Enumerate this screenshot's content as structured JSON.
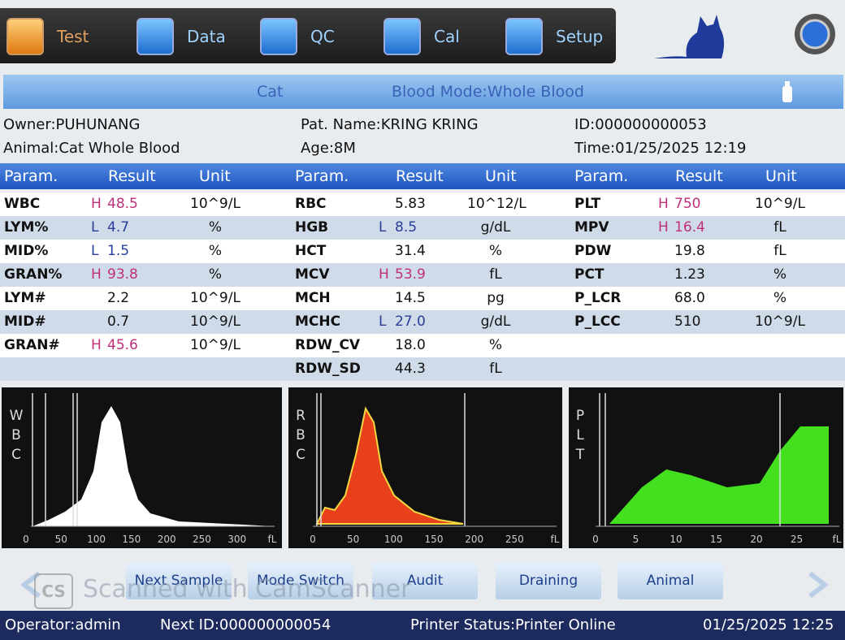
{
  "nav": {
    "buttons": [
      "Test",
      "Data",
      "QC",
      "Cal",
      "Setup"
    ]
  },
  "header": {
    "species": "Cat",
    "mode": "Blood Mode:Whole Blood"
  },
  "info": {
    "owner": "Owner:PUHUNANG",
    "patient": "Pat. Name:KRING KRING",
    "id": "ID:000000000053",
    "animal": "Animal:Cat Whole Blood",
    "age": "Age:8M",
    "time": "Time:01/25/2025 12:19"
  },
  "table": {
    "columns": [
      "Param.",
      "Result",
      "Unit"
    ],
    "groups": [
      [
        {
          "param": "WBC",
          "flag": "H",
          "result": "48.5",
          "unit": "10^9/L"
        },
        {
          "param": "LYM%",
          "flag": "L",
          "result": "4.7",
          "unit": "%"
        },
        {
          "param": "MID%",
          "flag": "L",
          "result": "1.5",
          "unit": "%"
        },
        {
          "param": "GRAN%",
          "flag": "H",
          "result": "93.8",
          "unit": "%"
        },
        {
          "param": "LYM#",
          "result": "2.2",
          "unit": "10^9/L"
        },
        {
          "param": "MID#",
          "result": "0.7",
          "unit": "10^9/L"
        },
        {
          "param": "GRAN#",
          "flag": "H",
          "result": "45.6",
          "unit": "10^9/L"
        }
      ],
      [
        {
          "param": "RBC",
          "result": "5.83",
          "unit": "10^12/L"
        },
        {
          "param": "HGB",
          "flag": "L",
          "result": "8.5",
          "unit": "g/dL"
        },
        {
          "param": "HCT",
          "result": "31.4",
          "unit": "%"
        },
        {
          "param": "MCV",
          "flag": "H",
          "result": "53.9",
          "unit": "fL"
        },
        {
          "param": "MCH",
          "result": "14.5",
          "unit": "pg"
        },
        {
          "param": "MCHC",
          "flag": "L",
          "result": "27.0",
          "unit": "g/dL"
        },
        {
          "param": "RDW_CV",
          "result": "18.0",
          "unit": "%"
        },
        {
          "param": "RDW_SD",
          "result": "44.3",
          "unit": "fL"
        }
      ],
      [
        {
          "param": "PLT",
          "flag": "H",
          "result": "750",
          "unit": "10^9/L"
        },
        {
          "param": "MPV",
          "flag": "H",
          "result": "16.4",
          "unit": "fL"
        },
        {
          "param": "PDW",
          "result": "19.8",
          "unit": "fL"
        },
        {
          "param": "PCT",
          "result": "1.23",
          "unit": "%"
        },
        {
          "param": "P_LCR",
          "result": "68.0",
          "unit": "%"
        },
        {
          "param": "P_LCC",
          "result": "510",
          "unit": "10^9/L"
        }
      ]
    ]
  },
  "histograms": [
    {
      "label": "WBC",
      "ticks": [
        "0",
        "50",
        "100",
        "150",
        "200",
        "250",
        "300",
        "fL"
      ]
    },
    {
      "label": "RBC",
      "ticks": [
        "0",
        "50",
        "100",
        "150",
        "200",
        "250",
        "fL"
      ]
    },
    {
      "label": "PLT",
      "ticks": [
        "0",
        "5",
        "10",
        "15",
        "20",
        "25",
        "fL"
      ]
    }
  ],
  "actions": [
    "Next Sample",
    "Mode Switch",
    "Audit",
    "Draining",
    "Animal"
  ],
  "watermark": {
    "logo": "CS",
    "text": "Scanned with CamScanner"
  },
  "status": {
    "operator": "Operator:admin",
    "next_id": "Next ID:000000000054",
    "printer": "Printer Status:Printer Online",
    "time": "01/25/2025 12:25"
  }
}
